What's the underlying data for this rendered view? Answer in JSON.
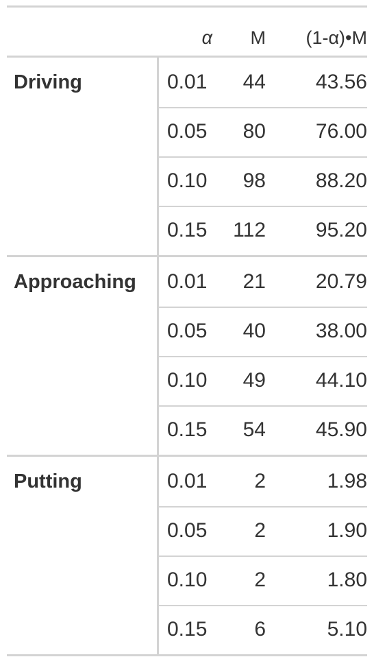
{
  "header": {
    "alpha": "α",
    "m": "M",
    "calc": "(1-α)•M"
  },
  "groups": [
    {
      "label": "Driving",
      "rows": [
        {
          "alpha": "0.01",
          "m": "44",
          "calc": "43.56"
        },
        {
          "alpha": "0.05",
          "m": "80",
          "calc": "76.00"
        },
        {
          "alpha": "0.10",
          "m": "98",
          "calc": "88.20"
        },
        {
          "alpha": "0.15",
          "m": "112",
          "calc": "95.20"
        }
      ]
    },
    {
      "label": "Approaching",
      "rows": [
        {
          "alpha": "0.01",
          "m": "21",
          "calc": "20.79"
        },
        {
          "alpha": "0.05",
          "m": "40",
          "calc": "38.00"
        },
        {
          "alpha": "0.10",
          "m": "49",
          "calc": "44.10"
        },
        {
          "alpha": "0.15",
          "m": "54",
          "calc": "45.90"
        }
      ]
    },
    {
      "label": "Putting",
      "rows": [
        {
          "alpha": "0.01",
          "m": "2",
          "calc": "1.98"
        },
        {
          "alpha": "0.05",
          "m": "2",
          "calc": "1.90"
        },
        {
          "alpha": "0.10",
          "m": "2",
          "calc": "1.80"
        },
        {
          "alpha": "0.15",
          "m": "6",
          "calc": "5.10"
        }
      ]
    }
  ]
}
